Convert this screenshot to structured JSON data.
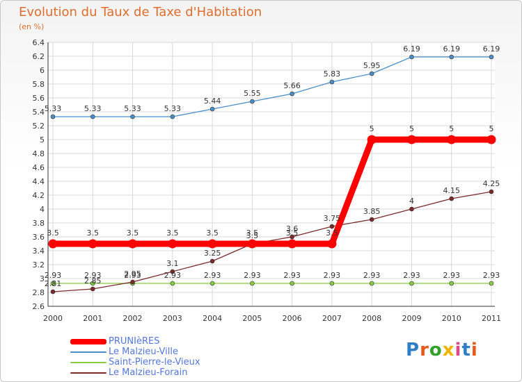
{
  "title": "Evolution du Taux de Taxe d'Habitation",
  "unit": "(en %)",
  "logo": {
    "text": "Proxiti",
    "colors": [
      "#2f7fc8",
      "#e8571c",
      "#33a02c",
      "#f0b400",
      "#d94a8c",
      "#2f7fc8",
      "#e8571c"
    ]
  },
  "chart_data": {
    "type": "line",
    "x": [
      "2000",
      "2001",
      "2002",
      "2003",
      "2004",
      "2005",
      "2006",
      "2007",
      "2008",
      "2009",
      "2010",
      "2011"
    ],
    "ylim": [
      2.6,
      6.4
    ],
    "yticks": [
      "2.6",
      "2.8",
      "3",
      "3.2",
      "3.4",
      "3.6",
      "3.8",
      "4",
      "4.2",
      "4.4",
      "4.6",
      "4.8",
      "5",
      "5.2",
      "5.4",
      "5.6",
      "5.8",
      "6",
      "6.2",
      "6.4"
    ],
    "grid": true,
    "legend": "bottom-left",
    "series": [
      {
        "name": "PRUNIèRES",
        "color": "#ff0000",
        "values": [
          3.5,
          3.5,
          3.5,
          3.5,
          3.5,
          3.5,
          3.5,
          3.5,
          5,
          5,
          5,
          5
        ],
        "labels": [
          "3.5",
          "3.5",
          "3.5",
          "3.5",
          "3.5",
          "3.5",
          "3.5",
          "3.5",
          "5",
          "5",
          "5",
          "5"
        ]
      },
      {
        "name": "Le Malzieu-Ville",
        "color": "#4a8ec8",
        "values": [
          5.33,
          5.33,
          5.33,
          5.33,
          5.44,
          5.55,
          5.66,
          5.83,
          5.95,
          6.19,
          6.19,
          6.19
        ],
        "labels": [
          "5.33",
          "5.33",
          "5.33",
          "5.33",
          "5.44",
          "5.55",
          "5.66",
          "5.83",
          "5.95",
          "6.19",
          "6.19",
          "6.19"
        ]
      },
      {
        "name": "Saint-Pierre-le-Vieux",
        "color": "#88cc44",
        "values": [
          2.93,
          2.93,
          2.93,
          2.93,
          2.93,
          2.93,
          2.93,
          2.93,
          2.93,
          2.93,
          2.93,
          2.93
        ],
        "labels": [
          "2.93",
          "2.93",
          "2.93",
          "2.93",
          "2.93",
          "2.93",
          "2.93",
          "2.93",
          "2.93",
          "2.93",
          "2.93",
          "2.93"
        ]
      },
      {
        "name": "Le Malzieu-Forain",
        "color": "#7a2a2a",
        "values": [
          2.81,
          2.85,
          2.95,
          3.1,
          3.25,
          3.5,
          3.6,
          3.75,
          3.85,
          4,
          4.15,
          4.25
        ],
        "labels": [
          "2.81",
          "2.85",
          "2.95",
          "3.1",
          "3.25",
          "3.5",
          "3.6",
          "3.75",
          "3.85",
          "4",
          "4.15",
          "4.25"
        ]
      }
    ]
  }
}
